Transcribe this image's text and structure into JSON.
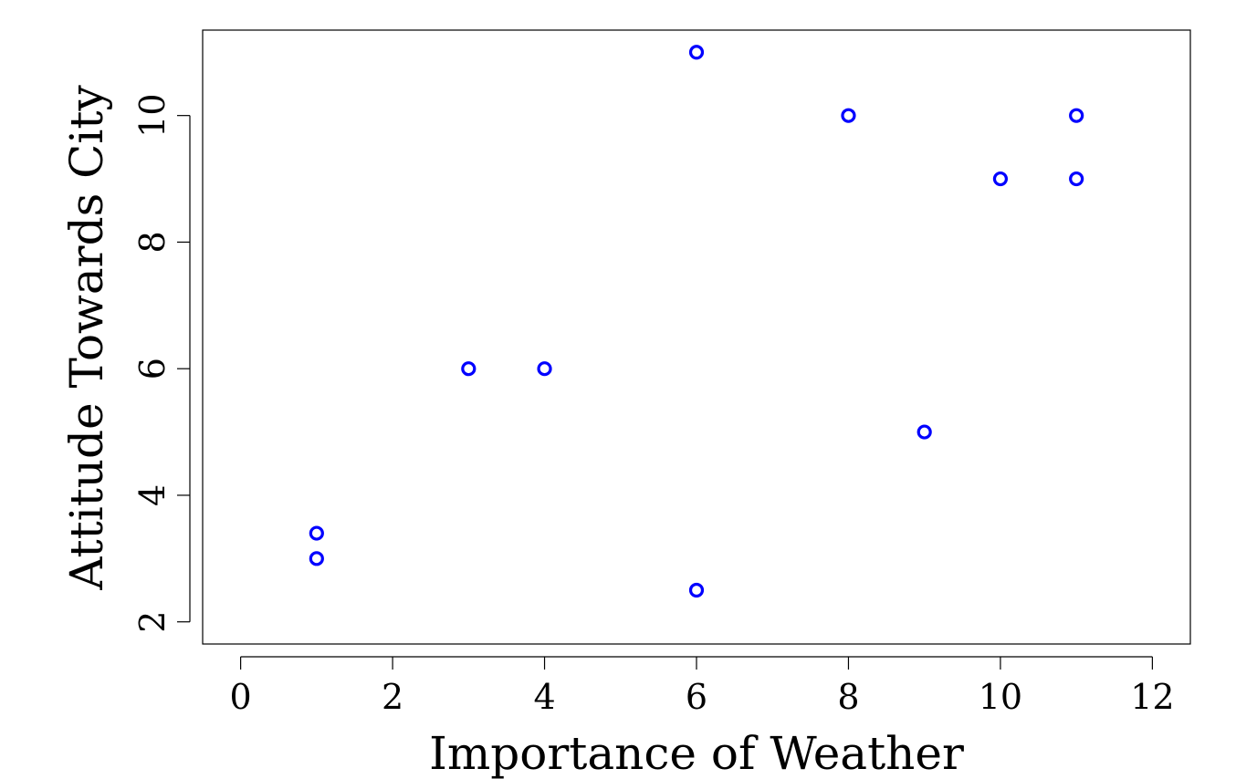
{
  "chart_data": {
    "type": "scatter",
    "title": "",
    "xlabel": "Importance of Weather",
    "ylabel": "Attitude Towards City",
    "xlim": [
      -0.5,
      12.5
    ],
    "ylim": [
      1.65,
      11.35
    ],
    "x_ticks": [
      0,
      2,
      4,
      6,
      8,
      10,
      12
    ],
    "y_ticks": [
      2,
      4,
      6,
      8,
      10
    ],
    "grid": false,
    "marker_color": "#0000ff",
    "marker": "open-circle",
    "points": [
      {
        "x": 1,
        "y": 3.4
      },
      {
        "x": 1,
        "y": 3.0
      },
      {
        "x": 3,
        "y": 6.0
      },
      {
        "x": 4,
        "y": 6.0
      },
      {
        "x": 6,
        "y": 11.0
      },
      {
        "x": 6,
        "y": 2.5
      },
      {
        "x": 8,
        "y": 10.0
      },
      {
        "x": 9,
        "y": 5.0
      },
      {
        "x": 10,
        "y": 9.0
      },
      {
        "x": 11,
        "y": 10.0
      },
      {
        "x": 11,
        "y": 9.0
      }
    ]
  }
}
